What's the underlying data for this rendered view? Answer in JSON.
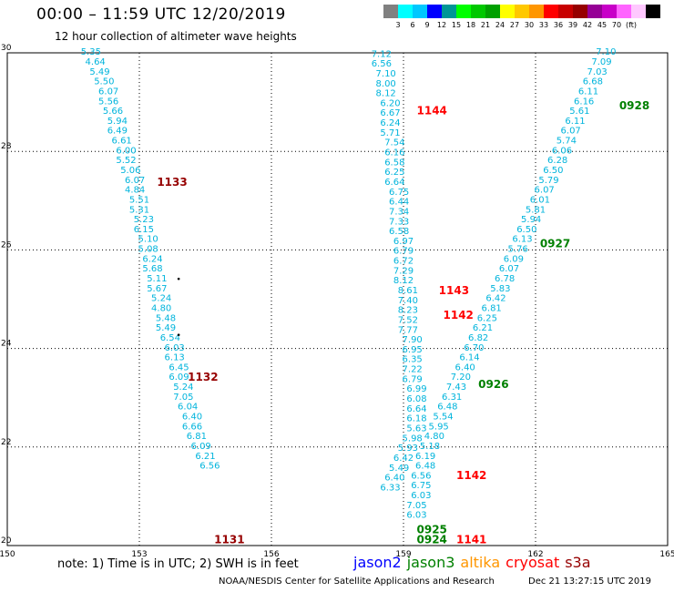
{
  "header": {
    "title": "00:00 – 11:59 UTC 12/20/2019",
    "subtitle": "12 hour collection of altimeter wave heights"
  },
  "colorbar": {
    "colors": [
      "#808080",
      "#00ffff",
      "#00c8ff",
      "#0000ff",
      "#009696",
      "#00ff00",
      "#00c800",
      "#00a000",
      "#ffff00",
      "#ffc800",
      "#ff9600",
      "#ff0000",
      "#c80000",
      "#960000",
      "#960096",
      "#c800c8",
      "#ff64ff",
      "#ffc8ff",
      "#000000"
    ],
    "labels": [
      "3",
      "6",
      "9",
      "12",
      "15",
      "18",
      "21",
      "24",
      "27",
      "30",
      "33",
      "36",
      "39",
      "42",
      "45",
      "70",
      "(ft)"
    ]
  },
  "axes": {
    "x_ticks": [
      "150",
      "153",
      "156",
      "159",
      "162",
      "165"
    ],
    "y_ticks": [
      "30",
      "28",
      "26",
      "24",
      "22",
      "20"
    ]
  },
  "chart_data": {
    "type": "scatter",
    "xlim": [
      150,
      165
    ],
    "ylim": [
      20,
      30
    ],
    "units": "ft",
    "tracks": [
      {
        "satellite_color": "cyan",
        "points": [
          {
            "lon": 151.9,
            "lat": 29.96,
            "v": "5.35"
          },
          {
            "lon": 152.0,
            "lat": 29.76,
            "v": "4.64"
          },
          {
            "lon": 152.1,
            "lat": 29.56,
            "v": "5.49"
          },
          {
            "lon": 152.2,
            "lat": 29.36,
            "v": "5.50"
          },
          {
            "lon": 152.3,
            "lat": 29.16,
            "v": "6.07"
          },
          {
            "lon": 152.3,
            "lat": 28.96,
            "v": "5.56"
          },
          {
            "lon": 152.4,
            "lat": 28.76,
            "v": "5.66"
          },
          {
            "lon": 152.5,
            "lat": 28.56,
            "v": "5.94"
          },
          {
            "lon": 152.5,
            "lat": 28.36,
            "v": "6.49"
          },
          {
            "lon": 152.6,
            "lat": 28.16,
            "v": "6.61"
          },
          {
            "lon": 152.7,
            "lat": 27.96,
            "v": "6.00"
          },
          {
            "lon": 152.7,
            "lat": 27.76,
            "v": "5.52"
          },
          {
            "lon": 152.8,
            "lat": 27.56,
            "v": "5.06"
          },
          {
            "lon": 152.9,
            "lat": 27.36,
            "v": "6.07"
          },
          {
            "lon": 152.9,
            "lat": 27.16,
            "v": "4.84"
          },
          {
            "lon": 153.0,
            "lat": 26.96,
            "v": "5.51"
          },
          {
            "lon": 153.0,
            "lat": 26.76,
            "v": "5.31"
          },
          {
            "lon": 153.1,
            "lat": 26.56,
            "v": "5.23"
          },
          {
            "lon": 153.1,
            "lat": 26.36,
            "v": "6.15"
          },
          {
            "lon": 153.2,
            "lat": 26.16,
            "v": "5.10"
          },
          {
            "lon": 153.2,
            "lat": 25.96,
            "v": "5.08"
          },
          {
            "lon": 153.3,
            "lat": 25.76,
            "v": "6.24"
          },
          {
            "lon": 153.3,
            "lat": 25.56,
            "v": "5.68"
          },
          {
            "lon": 153.4,
            "lat": 25.36,
            "v": "5.11"
          },
          {
            "lon": 153.4,
            "lat": 25.16,
            "v": "5.67"
          },
          {
            "lon": 153.5,
            "lat": 24.96,
            "v": "5.24"
          },
          {
            "lon": 153.5,
            "lat": 24.76,
            "v": "4.80"
          },
          {
            "lon": 153.6,
            "lat": 24.56,
            "v": "5.48"
          },
          {
            "lon": 153.6,
            "lat": 24.36,
            "v": "5.49"
          },
          {
            "lon": 153.7,
            "lat": 24.16,
            "v": "6.54"
          },
          {
            "lon": 153.8,
            "lat": 23.96,
            "v": "6.03"
          },
          {
            "lon": 153.8,
            "lat": 23.76,
            "v": "6.13"
          },
          {
            "lon": 153.9,
            "lat": 23.56,
            "v": "6.45"
          },
          {
            "lon": 153.9,
            "lat": 23.36,
            "v": "6.09"
          },
          {
            "lon": 154.0,
            "lat": 23.16,
            "v": "5.24"
          },
          {
            "lon": 154.0,
            "lat": 22.96,
            "v": "7.05"
          },
          {
            "lon": 154.1,
            "lat": 22.76,
            "v": "6.04"
          },
          {
            "lon": 154.2,
            "lat": 22.56,
            "v": "6.40"
          },
          {
            "lon": 154.2,
            "lat": 22.36,
            "v": "6.66"
          },
          {
            "lon": 154.3,
            "lat": 22.16,
            "v": "6.81"
          },
          {
            "lon": 154.4,
            "lat": 21.96,
            "v": "6.09"
          },
          {
            "lon": 154.5,
            "lat": 21.76,
            "v": "6.21"
          },
          {
            "lon": 154.6,
            "lat": 21.56,
            "v": "6.56"
          }
        ]
      },
      {
        "satellite_color": "cyan",
        "points": [
          {
            "lon": 158.5,
            "lat": 29.92,
            "v": "7.12"
          },
          {
            "lon": 158.5,
            "lat": 29.72,
            "v": "6.56"
          },
          {
            "lon": 158.6,
            "lat": 29.52,
            "v": "7.10"
          },
          {
            "lon": 158.6,
            "lat": 29.32,
            "v": "8.00"
          },
          {
            "lon": 158.6,
            "lat": 29.12,
            "v": "8.12"
          },
          {
            "lon": 158.7,
            "lat": 28.92,
            "v": "6.20"
          },
          {
            "lon": 158.7,
            "lat": 28.72,
            "v": "6.67"
          },
          {
            "lon": 158.7,
            "lat": 28.52,
            "v": "6.24"
          },
          {
            "lon": 158.7,
            "lat": 28.32,
            "v": "5.71"
          },
          {
            "lon": 158.8,
            "lat": 28.12,
            "v": "7.54"
          },
          {
            "lon": 158.8,
            "lat": 27.92,
            "v": "6.16"
          },
          {
            "lon": 158.8,
            "lat": 27.72,
            "v": "6.58"
          },
          {
            "lon": 158.8,
            "lat": 27.52,
            "v": "6.25"
          },
          {
            "lon": 158.8,
            "lat": 27.32,
            "v": "6.64"
          },
          {
            "lon": 158.9,
            "lat": 27.12,
            "v": "6.75"
          },
          {
            "lon": 158.9,
            "lat": 26.92,
            "v": "6.44"
          },
          {
            "lon": 158.9,
            "lat": 26.72,
            "v": "7.34"
          },
          {
            "lon": 158.9,
            "lat": 26.52,
            "v": "7.33"
          },
          {
            "lon": 158.9,
            "lat": 26.32,
            "v": "6.58"
          },
          {
            "lon": 159.0,
            "lat": 26.12,
            "v": "6.97"
          },
          {
            "lon": 159.0,
            "lat": 25.92,
            "v": "6.79"
          },
          {
            "lon": 159.0,
            "lat": 25.72,
            "v": "6.72"
          },
          {
            "lon": 159.0,
            "lat": 25.52,
            "v": "7.29"
          },
          {
            "lon": 159.0,
            "lat": 25.32,
            "v": "8.12"
          },
          {
            "lon": 159.1,
            "lat": 25.12,
            "v": "8.61"
          },
          {
            "lon": 159.1,
            "lat": 24.92,
            "v": "7.40"
          },
          {
            "lon": 159.1,
            "lat": 24.72,
            "v": "8.23"
          },
          {
            "lon": 159.1,
            "lat": 24.52,
            "v": "7.52"
          },
          {
            "lon": 159.1,
            "lat": 24.32,
            "v": "7.77"
          },
          {
            "lon": 159.2,
            "lat": 24.12,
            "v": "7.90"
          },
          {
            "lon": 159.2,
            "lat": 23.92,
            "v": "6.95"
          },
          {
            "lon": 159.2,
            "lat": 23.72,
            "v": "6.35"
          },
          {
            "lon": 159.2,
            "lat": 23.52,
            "v": "7.22"
          },
          {
            "lon": 159.2,
            "lat": 23.32,
            "v": "6.79"
          },
          {
            "lon": 159.3,
            "lat": 23.12,
            "v": "6.99"
          },
          {
            "lon": 159.3,
            "lat": 22.92,
            "v": "6.08"
          },
          {
            "lon": 159.3,
            "lat": 22.72,
            "v": "6.64"
          },
          {
            "lon": 159.3,
            "lat": 22.52,
            "v": "6.18"
          },
          {
            "lon": 159.3,
            "lat": 22.32,
            "v": "5.63"
          },
          {
            "lon": 159.2,
            "lat": 22.12,
            "v": "5.98"
          },
          {
            "lon": 159.1,
            "lat": 21.92,
            "v": "5.93"
          },
          {
            "lon": 159.0,
            "lat": 21.72,
            "v": "6.42"
          },
          {
            "lon": 158.9,
            "lat": 21.52,
            "v": "5.49"
          },
          {
            "lon": 158.8,
            "lat": 21.32,
            "v": "6.40"
          },
          {
            "lon": 158.7,
            "lat": 21.12,
            "v": "6.33"
          }
        ]
      },
      {
        "satellite_color": "cyan",
        "points": [
          {
            "lon": 163.6,
            "lat": 29.96,
            "v": "7.10"
          },
          {
            "lon": 163.5,
            "lat": 29.76,
            "v": "7.09"
          },
          {
            "lon": 163.4,
            "lat": 29.56,
            "v": "7.03"
          },
          {
            "lon": 163.3,
            "lat": 29.36,
            "v": "6.68"
          },
          {
            "lon": 163.2,
            "lat": 29.16,
            "v": "6.11"
          },
          {
            "lon": 163.1,
            "lat": 28.96,
            "v": "6.16"
          },
          {
            "lon": 163.0,
            "lat": 28.76,
            "v": "5.61"
          },
          {
            "lon": 162.9,
            "lat": 28.56,
            "v": "6.11"
          },
          {
            "lon": 162.8,
            "lat": 28.36,
            "v": "6.07"
          },
          {
            "lon": 162.7,
            "lat": 28.16,
            "v": "5.74"
          },
          {
            "lon": 162.6,
            "lat": 27.96,
            "v": "6.06"
          },
          {
            "lon": 162.5,
            "lat": 27.76,
            "v": "6.28"
          },
          {
            "lon": 162.4,
            "lat": 27.56,
            "v": "6.50"
          },
          {
            "lon": 162.3,
            "lat": 27.36,
            "v": "5.79"
          },
          {
            "lon": 162.2,
            "lat": 27.16,
            "v": "6.07"
          },
          {
            "lon": 162.1,
            "lat": 26.96,
            "v": "6.01"
          },
          {
            "lon": 162.0,
            "lat": 26.76,
            "v": "5.81"
          },
          {
            "lon": 161.9,
            "lat": 26.56,
            "v": "5.94"
          },
          {
            "lon": 161.8,
            "lat": 26.36,
            "v": "6.50"
          },
          {
            "lon": 161.7,
            "lat": 26.16,
            "v": "6.13"
          },
          {
            "lon": 161.6,
            "lat": 25.96,
            "v": "5.76"
          },
          {
            "lon": 161.5,
            "lat": 25.76,
            "v": "6.09"
          },
          {
            "lon": 161.4,
            "lat": 25.56,
            "v": "6.07"
          },
          {
            "lon": 161.3,
            "lat": 25.36,
            "v": "6.78"
          },
          {
            "lon": 161.2,
            "lat": 25.16,
            "v": "5.83"
          },
          {
            "lon": 161.1,
            "lat": 24.96,
            "v": "6.42"
          },
          {
            "lon": 161.0,
            "lat": 24.76,
            "v": "6.81"
          },
          {
            "lon": 160.9,
            "lat": 24.56,
            "v": "6.25"
          },
          {
            "lon": 160.8,
            "lat": 24.36,
            "v": "6.21"
          },
          {
            "lon": 160.7,
            "lat": 24.16,
            "v": "6.82"
          },
          {
            "lon": 160.6,
            "lat": 23.96,
            "v": "6.70"
          },
          {
            "lon": 160.5,
            "lat": 23.76,
            "v": "6.14"
          },
          {
            "lon": 160.4,
            "lat": 23.56,
            "v": "6.40"
          },
          {
            "lon": 160.3,
            "lat": 23.36,
            "v": "7.20"
          },
          {
            "lon": 160.2,
            "lat": 23.16,
            "v": "7.43"
          },
          {
            "lon": 160.1,
            "lat": 22.96,
            "v": "6.31"
          },
          {
            "lon": 160.0,
            "lat": 22.76,
            "v": "6.48"
          },
          {
            "lon": 159.9,
            "lat": 22.56,
            "v": "5.54"
          },
          {
            "lon": 159.8,
            "lat": 22.36,
            "v": "5.95"
          },
          {
            "lon": 159.7,
            "lat": 22.16,
            "v": "4.80"
          },
          {
            "lon": 159.6,
            "lat": 21.96,
            "v": "5.18"
          },
          {
            "lon": 159.5,
            "lat": 21.76,
            "v": "6.19"
          },
          {
            "lon": 159.5,
            "lat": 21.56,
            "v": "6.48"
          },
          {
            "lon": 159.4,
            "lat": 21.36,
            "v": "6.56"
          },
          {
            "lon": 159.4,
            "lat": 21.16,
            "v": "6.75"
          },
          {
            "lon": 159.4,
            "lat": 20.96,
            "v": "6.03"
          },
          {
            "lon": 159.3,
            "lat": 20.76,
            "v": "7.05"
          },
          {
            "lon": 159.3,
            "lat": 20.56,
            "v": "6.03"
          }
        ]
      }
    ],
    "time_labels": [
      {
        "lon": 154.7,
        "lat": 20.05,
        "t": "1131",
        "color": "#960000"
      },
      {
        "lon": 153.4,
        "lat": 27.3,
        "t": "1133",
        "color": "#960000"
      },
      {
        "lon": 154.1,
        "lat": 23.35,
        "t": "1132",
        "color": "#960000"
      },
      {
        "lon": 159.3,
        "lat": 28.75,
        "t": "1144",
        "color": "#ff0000"
      },
      {
        "lon": 159.8,
        "lat": 25.1,
        "t": "1143",
        "color": "#ff0000"
      },
      {
        "lon": 159.9,
        "lat": 24.6,
        "t": "1142",
        "color": "#ff0000"
      },
      {
        "lon": 160.2,
        "lat": 21.35,
        "t": "1142",
        "color": "#ff0000"
      },
      {
        "lon": 160.2,
        "lat": 20.05,
        "t": "1141",
        "color": "#ff0000"
      },
      {
        "lon": 163.9,
        "lat": 28.85,
        "t": "0928",
        "color": "#008000"
      },
      {
        "lon": 162.1,
        "lat": 26.05,
        "t": "0927",
        "color": "#008000"
      },
      {
        "lon": 160.7,
        "lat": 23.2,
        "t": "0926",
        "color": "#008000"
      },
      {
        "lon": 159.3,
        "lat": 20.25,
        "t": "0925",
        "color": "#008000"
      },
      {
        "lon": 159.3,
        "lat": 20.05,
        "t": "0924",
        "color": "#008000"
      }
    ]
  },
  "footer": {
    "note": "note: 1) Time is in UTC; 2) SWH is in feet",
    "legend": [
      {
        "label": "jason2",
        "color": "#0000ff"
      },
      {
        "label": "jason3",
        "color": "#008000"
      },
      {
        "label": "altika",
        "color": "#ff9600"
      },
      {
        "label": "cryosat",
        "color": "#ff0000"
      },
      {
        "label": "s3a",
        "color": "#960000"
      }
    ],
    "credit": "NOAA/NESDIS Center for Satellite Applications and Research",
    "date": "Dec 21 13:27:15 UTC 2019"
  }
}
